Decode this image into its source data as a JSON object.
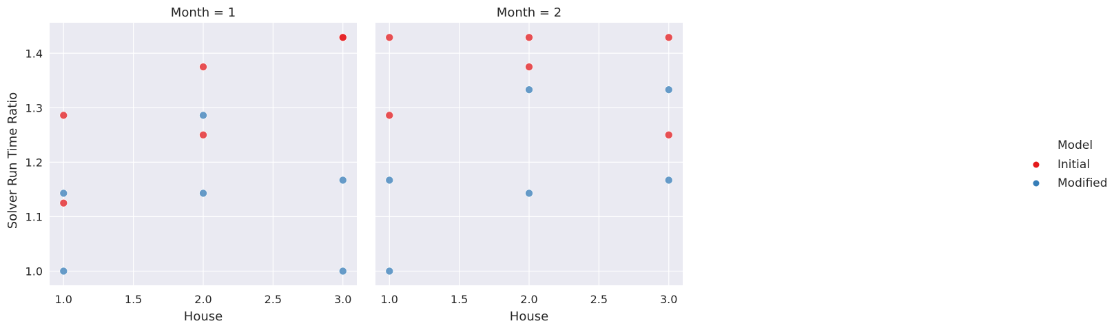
{
  "chart_data": [
    {
      "type": "scatter",
      "title": "Month = 1",
      "xlabel": "House",
      "ylabel": "Solver Run Time Ratio",
      "xlim": [
        0.9,
        3.1
      ],
      "ylim": [
        0.974,
        1.456
      ],
      "xticks": [
        "1.0",
        "1.5",
        "2.0",
        "2.5",
        "3.0"
      ],
      "yticks": [
        "1.0",
        "1.1",
        "1.2",
        "1.3",
        "1.4"
      ],
      "grid": true,
      "series": [
        {
          "name": "Initial",
          "color": "#e41a1c",
          "points": [
            [
              1,
              1.286
            ],
            [
              1,
              1.125
            ],
            [
              2,
              1.375
            ],
            [
              2,
              1.25
            ],
            [
              3,
              1.429
            ],
            [
              3,
              1.429
            ]
          ]
        },
        {
          "name": "Modified",
          "color": "#377eb8",
          "points": [
            [
              1,
              1.143
            ],
            [
              1,
              1.0
            ],
            [
              2,
              1.286
            ],
            [
              2,
              1.143
            ],
            [
              3,
              1.167
            ],
            [
              3,
              1.0
            ]
          ]
        }
      ]
    },
    {
      "type": "scatter",
      "title": "Month = 2",
      "xlabel": "House",
      "ylabel": "",
      "xlim": [
        0.9,
        3.1
      ],
      "ylim": [
        0.974,
        1.456
      ],
      "xticks": [
        "1.0",
        "1.5",
        "2.0",
        "2.5",
        "3.0"
      ],
      "yticks": [],
      "grid": true,
      "series": [
        {
          "name": "Initial",
          "color": "#e41a1c",
          "points": [
            [
              1,
              1.429
            ],
            [
              1,
              1.286
            ],
            [
              2,
              1.429
            ],
            [
              2,
              1.375
            ],
            [
              3,
              1.429
            ],
            [
              3,
              1.25
            ]
          ]
        },
        {
          "name": "Modified",
          "color": "#377eb8",
          "points": [
            [
              1,
              1.167
            ],
            [
              1,
              1.0
            ],
            [
              2,
              1.333
            ],
            [
              2,
              1.143
            ],
            [
              3,
              1.333
            ],
            [
              3,
              1.167
            ]
          ]
        }
      ]
    }
  ],
  "legend": {
    "title": "Model",
    "placement": "right",
    "items": [
      {
        "label": "Initial",
        "color": "#e41a1c"
      },
      {
        "label": "Modified",
        "color": "#377eb8"
      }
    ]
  }
}
